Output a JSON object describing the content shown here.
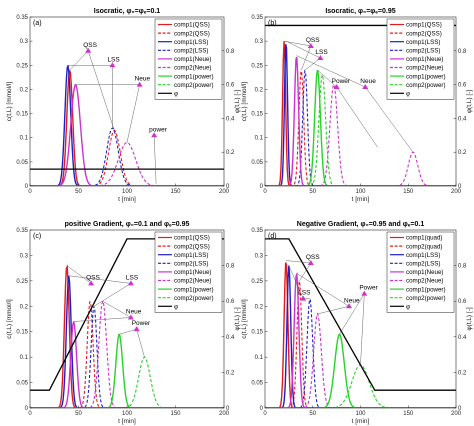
{
  "colors": {
    "qss": "#e41a1c",
    "lss": "#1f1fc8",
    "neue": "#cc33cc",
    "power": "#2ad12a",
    "phi": "#000000"
  },
  "chart_data": [
    {
      "type": "line",
      "panel_label": "(a)",
      "title": "Isocratic, φ₀=φₑ=0.1",
      "xlabel": "t [min]",
      "ylabel": "c(t,L) [mmol/l]",
      "ylabel_right": "φ(t,L) [-]",
      "xlim": [
        0,
        200
      ],
      "ylim": [
        0,
        0.35
      ],
      "y2lim": [
        0,
        1
      ],
      "xticks": [
        0,
        50,
        100,
        150,
        200
      ],
      "yticks": [
        0,
        0.05,
        0.1,
        0.15,
        0.2,
        0.25,
        0.3,
        0.35
      ],
      "y2ticks": [
        0,
        0.2,
        0.4,
        0.6,
        0.8
      ],
      "legend": [
        "comp1(QSS)",
        "comp2(QSS)",
        "comp1(LSS)",
        "comp2(LSS)",
        "comp1(Neue)",
        "comp2(Neue)",
        "comp1(power)",
        "comp2(power)",
        "φ"
      ],
      "legend_position": "top-right",
      "series": [
        {
          "name": "comp1(QSS)",
          "color_key": "qss",
          "dash": false,
          "peak_t": 41,
          "peak_c": 0.24,
          "sigma": 3
        },
        {
          "name": "comp2(QSS)",
          "color_key": "qss",
          "dash": true,
          "peak_t": 87,
          "peak_c": 0.115,
          "sigma": 6
        },
        {
          "name": "comp1(LSS)",
          "color_key": "lss",
          "dash": false,
          "peak_t": 39,
          "peak_c": 0.25,
          "sigma": 3
        },
        {
          "name": "comp2(LSS)",
          "color_key": "lss",
          "dash": true,
          "peak_t": 85,
          "peak_c": 0.12,
          "sigma": 6
        },
        {
          "name": "comp1(Neue)",
          "color_key": "neue",
          "dash": false,
          "peak_t": 47,
          "peak_c": 0.21,
          "sigma": 5
        },
        {
          "name": "comp2(Neue)",
          "color_key": "neue",
          "dash": true,
          "peak_t": 100,
          "peak_c": 0.09,
          "sigma": 9
        },
        {
          "name": "comp1(power)",
          "color_key": "power",
          "dash": false,
          "peak_t": 200,
          "peak_c": 0,
          "sigma": 1
        },
        {
          "name": "comp2(power)",
          "color_key": "power",
          "dash": true,
          "peak_t": 200,
          "peak_c": 0,
          "sigma": 1
        }
      ],
      "phi": {
        "t": [
          0,
          200
        ],
        "value": [
          0.1,
          0.1
        ]
      },
      "annotations": [
        {
          "text": "QSS",
          "t": 60,
          "c": 0.28,
          "targets": [
            [
              41,
              0.24
            ],
            [
              87,
              0.115
            ]
          ]
        },
        {
          "text": "LSS",
          "t": 85,
          "c": 0.25,
          "targets": [
            [
              39,
              0.25
            ],
            [
              85,
              0.12
            ]
          ]
        },
        {
          "text": "Neue",
          "t": 113,
          "c": 0.21,
          "targets": [
            [
              47,
              0.21
            ],
            [
              100,
              0.09
            ]
          ]
        },
        {
          "text": "power",
          "t": 128,
          "c": 0.105,
          "targets": [
            [
              130,
              0.005
            ]
          ]
        }
      ]
    },
    {
      "type": "line",
      "panel_label": "(b)",
      "title": "Isocratic, φ₀=φₑ=0.95",
      "xlabel": "t [min]",
      "ylabel": "c(t,L) [mmol/l]",
      "ylabel_right": "φ(t,L) [-]",
      "xlim": [
        0,
        200
      ],
      "ylim": [
        0,
        0.35
      ],
      "y2lim": [
        0,
        1
      ],
      "xticks": [
        0,
        50,
        100,
        150,
        200
      ],
      "yticks": [
        0,
        0.05,
        0.1,
        0.15,
        0.2,
        0.25,
        0.3,
        0.35
      ],
      "y2ticks": [
        0,
        0.2,
        0.4,
        0.6,
        0.8
      ],
      "legend": [
        "comp1(QSS)",
        "comp2(QSS)",
        "comp1(LSS)",
        "comp2(LSS)",
        "comp1(Neue)",
        "comp2(Neue)",
        "comp1(power)",
        "comp2(power)",
        "φ"
      ],
      "legend_position": "top-right",
      "series": [
        {
          "name": "comp1(QSS)",
          "color_key": "qss",
          "dash": false,
          "peak_t": 20,
          "peak_c": 0.3,
          "sigma": 1.6
        },
        {
          "name": "comp2(QSS)",
          "color_key": "qss",
          "dash": true,
          "peak_t": 38,
          "peak_c": 0.24,
          "sigma": 2.5
        },
        {
          "name": "comp1(LSS)",
          "color_key": "lss",
          "dash": false,
          "peak_t": 22,
          "peak_c": 0.3,
          "sigma": 1.6
        },
        {
          "name": "comp2(LSS)",
          "color_key": "lss",
          "dash": true,
          "peak_t": 42,
          "peak_c": 0.24,
          "sigma": 2.5
        },
        {
          "name": "comp1(Neue)",
          "color_key": "neue",
          "dash": false,
          "peak_t": 33,
          "peak_c": 0.27,
          "sigma": 2.2
        },
        {
          "name": "comp2(Neue)",
          "color_key": "neue",
          "dash": true,
          "peak_t": 72,
          "peak_c": 0.21,
          "sigma": 4
        },
        {
          "name": "comp1(power)",
          "color_key": "power",
          "dash": false,
          "peak_t": 55,
          "peak_c": 0.24,
          "sigma": 3
        },
        {
          "name": "comp2(power)",
          "color_key": "power",
          "dash": true,
          "peak_t": 60,
          "peak_c": 0.23,
          "sigma": 3.5
        },
        {
          "name": "comp2(power) tail",
          "color_key": "neue",
          "dash": true,
          "peak_t": 155,
          "peak_c": 0.07,
          "sigma": 5
        }
      ],
      "phi": {
        "t": [
          0,
          200
        ],
        "value": [
          0.95,
          0.95
        ]
      },
      "annotations": [
        {
          "text": "QSS",
          "t": 48,
          "c": 0.29,
          "targets": [
            [
              20,
              0.3
            ],
            [
              38,
              0.24
            ]
          ]
        },
        {
          "text": "LSS",
          "t": 58,
          "c": 0.265,
          "targets": [
            [
              22,
              0.3
            ],
            [
              42,
              0.24
            ]
          ]
        },
        {
          "text": "Power",
          "t": 75,
          "c": 0.205,
          "targets": [
            [
              55,
              0.24
            ],
            [
              118,
              0.08
            ]
          ]
        },
        {
          "text": "Neue",
          "t": 105,
          "c": 0.205,
          "targets": [
            [
              33,
              0.27
            ],
            [
              155,
              0.07
            ]
          ]
        }
      ]
    },
    {
      "type": "line",
      "panel_label": "(c)",
      "title": "positive Gradient, φ₀=0.1 and φₑ=0.95",
      "xlabel": "t [min]",
      "ylabel": "c(t,L) [mmol/l]",
      "ylabel_right": "φ(t,L) [-]",
      "xlim": [
        0,
        200
      ],
      "ylim": [
        0,
        0.35
      ],
      "y2lim": [
        0,
        1
      ],
      "xticks": [
        0,
        50,
        100,
        150,
        200
      ],
      "yticks": [
        0,
        0.05,
        0.1,
        0.15,
        0.2,
        0.25,
        0.3,
        0.35
      ],
      "y2ticks": [
        0,
        0.2,
        0.4,
        0.6,
        0.8
      ],
      "legend": [
        "comp1(QSS)",
        "comp2(QSS)",
        "comp1(LSS)",
        "comp2(LSS)",
        "comp1(Neue)",
        "comp2(Neue)",
        "comp1(power)",
        "comp2(power)",
        "φ"
      ],
      "legend_position": "top-right",
      "series": [
        {
          "name": "comp1(QSS)",
          "color_key": "qss",
          "dash": false,
          "peak_t": 38,
          "peak_c": 0.28,
          "sigma": 2.5
        },
        {
          "name": "comp2(QSS)",
          "color_key": "qss",
          "dash": true,
          "peak_t": 62,
          "peak_c": 0.21,
          "sigma": 3
        },
        {
          "name": "comp1(LSS)",
          "color_key": "lss",
          "dash": false,
          "peak_t": 40,
          "peak_c": 0.26,
          "sigma": 2.5
        },
        {
          "name": "comp2(LSS)",
          "color_key": "lss",
          "dash": true,
          "peak_t": 66,
          "peak_c": 0.2,
          "sigma": 3
        },
        {
          "name": "comp1(Neue)",
          "color_key": "neue",
          "dash": false,
          "peak_t": 45,
          "peak_c": 0.17,
          "sigma": 3
        },
        {
          "name": "comp2(Neue)",
          "color_key": "neue",
          "dash": true,
          "peak_t": 75,
          "peak_c": 0.21,
          "sigma": 4
        },
        {
          "name": "comp1(power)",
          "color_key": "power",
          "dash": false,
          "peak_t": 92,
          "peak_c": 0.145,
          "sigma": 3.5
        },
        {
          "name": "comp2(power)",
          "color_key": "power",
          "dash": true,
          "peak_t": 118,
          "peak_c": 0.1,
          "sigma": 6
        }
      ],
      "phi": {
        "t": [
          0,
          20,
          100,
          200
        ],
        "value": [
          0.1,
          0.1,
          0.95,
          0.95
        ]
      },
      "annotations": [
        {
          "text": "QSS",
          "t": 63,
          "c": 0.245,
          "targets": [
            [
              38,
              0.28
            ]
          ]
        },
        {
          "text": "LSS",
          "t": 104,
          "c": 0.245,
          "targets": [
            [
              40,
              0.26
            ],
            [
              66,
              0.2
            ]
          ]
        },
        {
          "text": "Neue",
          "t": 104,
          "c": 0.178,
          "targets": [
            [
              45,
              0.17
            ],
            [
              75,
              0.21
            ]
          ]
        },
        {
          "text": "Power",
          "t": 110,
          "c": 0.155,
          "targets": [
            [
              92,
              0.145
            ],
            [
              118,
              0.1
            ]
          ]
        }
      ]
    },
    {
      "type": "line",
      "panel_label": "(d)",
      "title": "Negative Gradient, φ₀=0.95 and φₑ=0.1",
      "xlabel": "t [min]",
      "ylabel": "c(t,L) [mmol/l]",
      "ylabel_right": "φ(t,L) [-]",
      "xlim": [
        0,
        200
      ],
      "ylim": [
        0,
        0.35
      ],
      "y2lim": [
        0,
        1
      ],
      "xticks": [
        0,
        50,
        100,
        150,
        200
      ],
      "yticks": [
        0,
        0.05,
        0.1,
        0.15,
        0.2,
        0.25,
        0.3,
        0.35
      ],
      "y2ticks": [
        0,
        0.2,
        0.4,
        0.6,
        0.8
      ],
      "legend": [
        "comp1(quad)",
        "comp2(quad)",
        "comp1(LSS)",
        "comp2(LSS)",
        "comp1(Neue)",
        "comp2(Neue)",
        "comp1(power)",
        "comp2(power)",
        "φ"
      ],
      "legend_position": "top-right",
      "series": [
        {
          "name": "comp1(quad)",
          "color_key": "qss",
          "dash": false,
          "peak_t": 22,
          "peak_c": 0.29,
          "sigma": 2
        },
        {
          "name": "comp2(quad)",
          "color_key": "qss",
          "dash": true,
          "peak_t": 36,
          "peak_c": 0.25,
          "sigma": 2.5
        },
        {
          "name": "comp1(LSS)",
          "color_key": "lss",
          "dash": false,
          "peak_t": 25,
          "peak_c": 0.28,
          "sigma": 2
        },
        {
          "name": "comp2(LSS)",
          "color_key": "lss",
          "dash": true,
          "peak_t": 47,
          "peak_c": 0.215,
          "sigma": 3
        },
        {
          "name": "comp1(Neue)",
          "color_key": "neue",
          "dash": false,
          "peak_t": 33,
          "peak_c": 0.265,
          "sigma": 2.5
        },
        {
          "name": "comp2(Neue)",
          "color_key": "neue",
          "dash": true,
          "peak_t": 55,
          "peak_c": 0.185,
          "sigma": 4
        },
        {
          "name": "comp1(power)",
          "color_key": "power",
          "dash": false,
          "peak_t": 78,
          "peak_c": 0.145,
          "sigma": 5
        },
        {
          "name": "comp2(power)",
          "color_key": "power",
          "dash": true,
          "peak_t": 100,
          "peak_c": 0.085,
          "sigma": 9
        }
      ],
      "phi": {
        "t": [
          0,
          25,
          115,
          200
        ],
        "value": [
          0.95,
          0.95,
          0.1,
          0.1
        ]
      },
      "annotations": [
        {
          "text": "QSS",
          "t": 48,
          "c": 0.285,
          "targets": [
            [
              22,
              0.29
            ],
            [
              36,
              0.25
            ]
          ]
        },
        {
          "text": "LSS",
          "t": 40,
          "c": 0.215,
          "targets": [
            [
              25,
              0.28
            ],
            [
              47,
              0.215
            ]
          ]
        },
        {
          "text": "Neue",
          "t": 88,
          "c": 0.2,
          "targets": [
            [
              33,
              0.265
            ],
            [
              55,
              0.185
            ]
          ]
        },
        {
          "text": "Power",
          "t": 104,
          "c": 0.225,
          "targets": [
            [
              78,
              0.145
            ],
            [
              100,
              0.085
            ]
          ]
        }
      ]
    }
  ]
}
